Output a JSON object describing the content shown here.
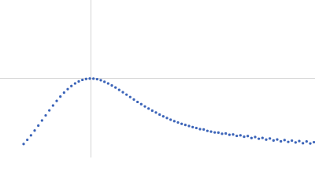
{
  "chart_data": {
    "type": "scatter",
    "xlim": [
      0,
      6
    ],
    "ylim": [
      0,
      2.2
    ],
    "reference_lines": {
      "x": 1.732,
      "y": 1.104,
      "color": "#d3d3d3"
    },
    "series": [
      {
        "color": "#3a63b8",
        "x": [
          0.45,
          0.52,
          0.59,
          0.66,
          0.73,
          0.8,
          0.87,
          0.94,
          1.01,
          1.08,
          1.15,
          1.22,
          1.29,
          1.36,
          1.43,
          1.5,
          1.57,
          1.64,
          1.71,
          1.78,
          1.85,
          1.92,
          1.99,
          2.06,
          2.13,
          2.2,
          2.27,
          2.34,
          2.41,
          2.48,
          2.55,
          2.62,
          2.69,
          2.76,
          2.83,
          2.9,
          2.97,
          3.04,
          3.11,
          3.18,
          3.25,
          3.32,
          3.39,
          3.46,
          3.53,
          3.6,
          3.67,
          3.74,
          3.81,
          3.88,
          3.95,
          4.02,
          4.09,
          4.16,
          4.23,
          4.3,
          4.37,
          4.44,
          4.51,
          4.58,
          4.65,
          4.72,
          4.79,
          4.86,
          4.93,
          5.0,
          5.07,
          5.14,
          5.21,
          5.28,
          5.35,
          5.42,
          5.49,
          5.56,
          5.63,
          5.7,
          5.77,
          5.84,
          5.91,
          5.98
        ],
        "values": [
          0.189,
          0.247,
          0.31,
          0.377,
          0.446,
          0.517,
          0.588,
          0.658,
          0.726,
          0.791,
          0.851,
          0.906,
          0.955,
          0.998,
          1.034,
          1.063,
          1.084,
          1.097,
          1.103,
          1.102,
          1.094,
          1.079,
          1.058,
          1.034,
          1.007,
          0.978,
          0.945,
          0.912,
          0.878,
          0.845,
          0.81,
          0.776,
          0.745,
          0.713,
          0.684,
          0.655,
          0.628,
          0.6,
          0.575,
          0.552,
          0.528,
          0.508,
          0.489,
          0.47,
          0.455,
          0.44,
          0.425,
          0.412,
          0.396,
          0.392,
          0.372,
          0.362,
          0.35,
          0.348,
          0.332,
          0.336,
          0.318,
          0.322,
          0.302,
          0.31,
          0.29,
          0.3,
          0.272,
          0.286,
          0.262,
          0.274,
          0.25,
          0.266,
          0.238,
          0.252,
          0.226,
          0.244,
          0.218,
          0.236,
          0.21,
          0.23,
          0.2,
          0.224,
          0.196,
          0.214
        ]
      }
    ]
  }
}
